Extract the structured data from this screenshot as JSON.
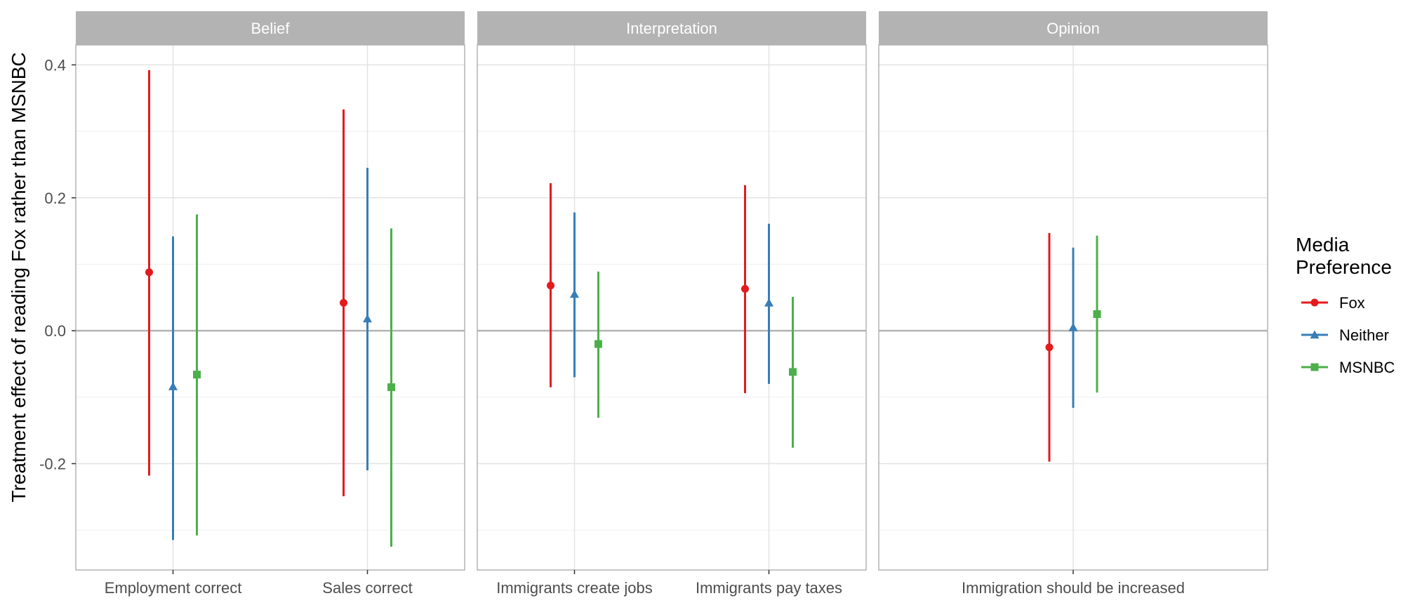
{
  "chart_data": {
    "type": "scatter",
    "ylabel": "Treatment effect of reading Fox rather than MSNBC",
    "xlabel": "",
    "ylim": [
      -0.36,
      0.43
    ],
    "yticks": [
      -0.2,
      0.0,
      0.2,
      0.4
    ],
    "ytick_labels": [
      "-0.2",
      "0.0",
      "0.2",
      "0.4"
    ],
    "grid": true,
    "reference_line": 0,
    "legend": {
      "title_lines": [
        "Media",
        "Preference"
      ],
      "position": "right",
      "entries": [
        {
          "name": "Fox",
          "color": "#e41a1c",
          "shape": "circle"
        },
        {
          "name": "Neither",
          "color": "#377eb8",
          "shape": "triangle"
        },
        {
          "name": "MSNBC",
          "color": "#4daf4a",
          "shape": "square"
        }
      ]
    },
    "panels": [
      {
        "strip": "Belief",
        "categories": [
          "Employment correct",
          "Sales correct"
        ],
        "series": [
          {
            "name": "Fox",
            "estimate": [
              0.088,
              0.042
            ],
            "lower": [
              -0.218,
              -0.249
            ],
            "upper": [
              0.392,
              0.333
            ]
          },
          {
            "name": "Neither",
            "estimate": [
              -0.084,
              0.018
            ],
            "lower": [
              -0.315,
              -0.21
            ],
            "upper": [
              0.142,
              0.245
            ]
          },
          {
            "name": "MSNBC",
            "estimate": [
              -0.066,
              -0.085
            ],
            "lower": [
              -0.308,
              -0.325
            ],
            "upper": [
              0.175,
              0.154
            ]
          }
        ]
      },
      {
        "strip": "Interpretation",
        "categories": [
          "Immigrants create jobs",
          "Immigrants pay taxes"
        ],
        "series": [
          {
            "name": "Fox",
            "estimate": [
              0.068,
              0.063
            ],
            "lower": [
              -0.085,
              -0.094
            ],
            "upper": [
              0.222,
              0.219
            ]
          },
          {
            "name": "Neither",
            "estimate": [
              0.055,
              0.042
            ],
            "lower": [
              -0.07,
              -0.08
            ],
            "upper": [
              0.178,
              0.161
            ]
          },
          {
            "name": "MSNBC",
            "estimate": [
              -0.02,
              -0.062
            ],
            "lower": [
              -0.131,
              -0.176
            ],
            "upper": [
              0.089,
              0.051
            ]
          }
        ]
      },
      {
        "strip": "Opinion",
        "categories": [
          "Immigration should be increased"
        ],
        "series": [
          {
            "name": "Fox",
            "estimate": [
              -0.025
            ],
            "lower": [
              -0.197
            ],
            "upper": [
              0.147
            ]
          },
          {
            "name": "Neither",
            "estimate": [
              0.005
            ],
            "lower": [
              -0.116
            ],
            "upper": [
              0.125
            ]
          },
          {
            "name": "MSNBC",
            "estimate": [
              0.025
            ],
            "lower": [
              -0.093
            ],
            "upper": [
              0.143
            ]
          }
        ]
      }
    ]
  }
}
